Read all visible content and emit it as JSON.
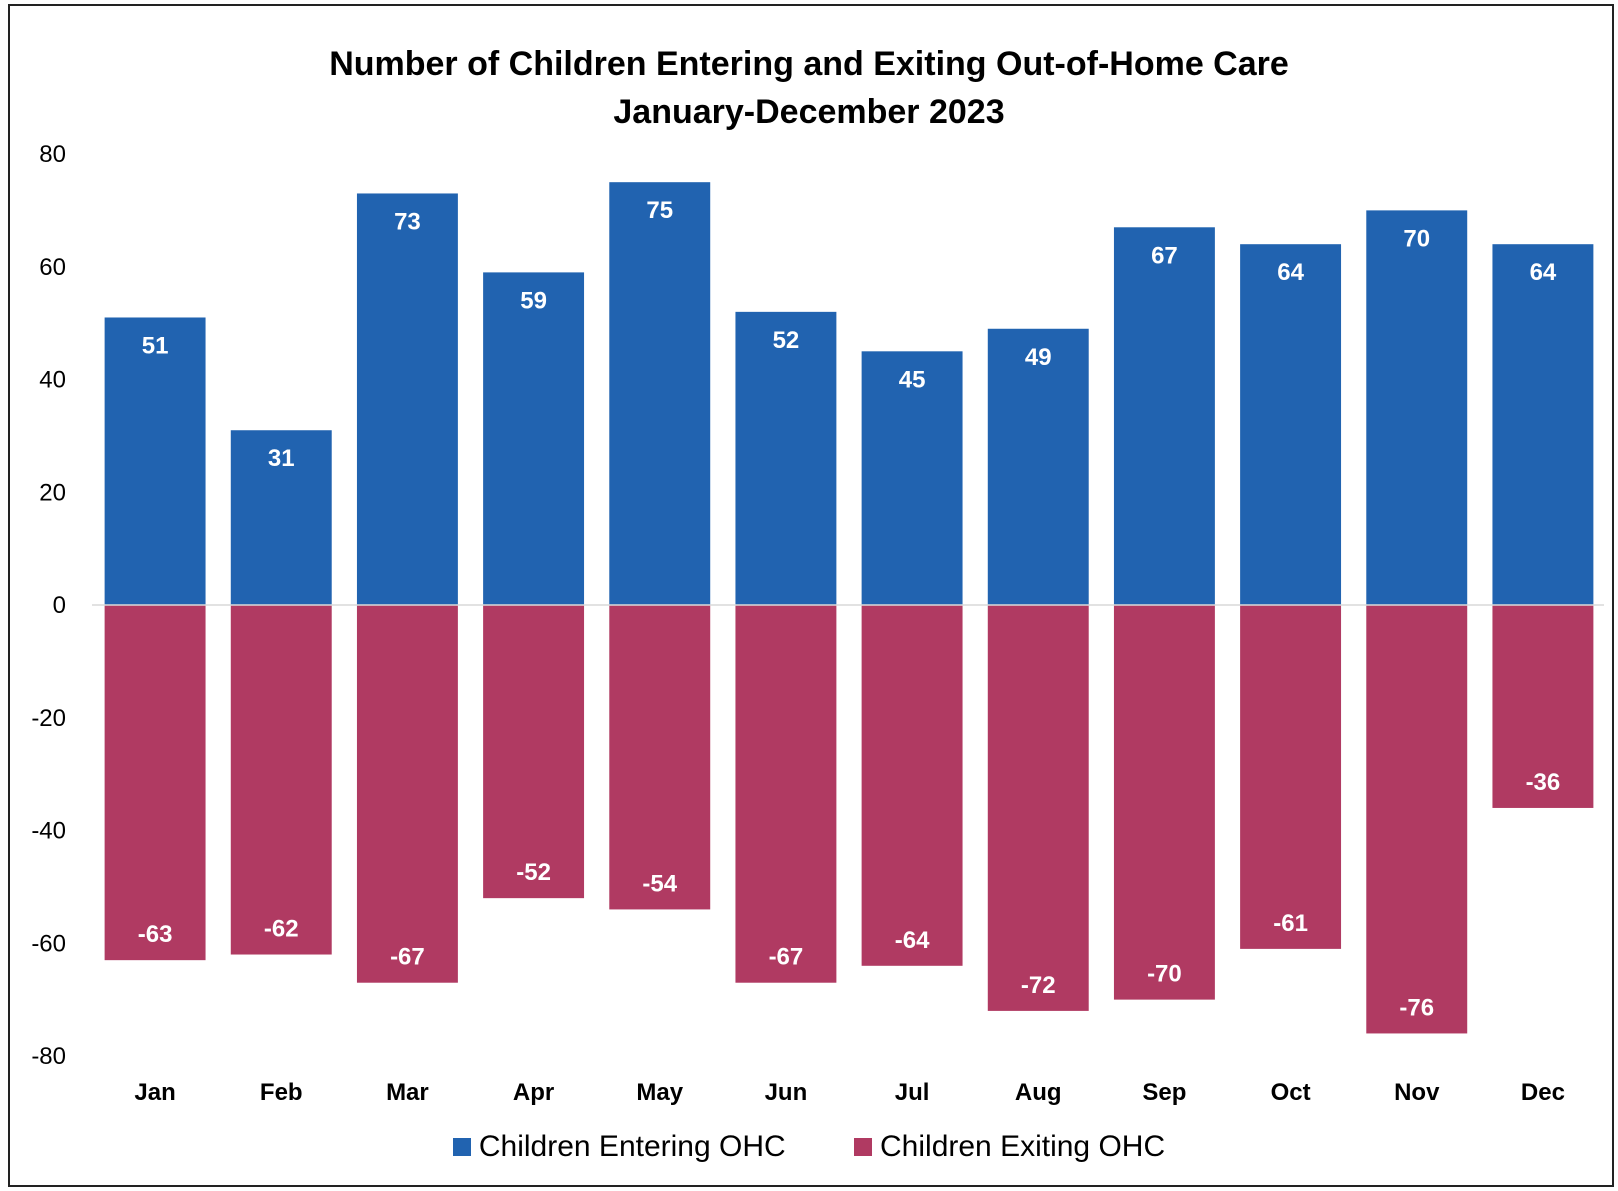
{
  "chart_data": {
    "type": "bar",
    "title": "Number of Children Entering and Exiting Out-of-Home Care",
    "subtitle": "January-December 2023",
    "categories": [
      "Jan",
      "Feb",
      "Mar",
      "Apr",
      "May",
      "Jun",
      "Jul",
      "Aug",
      "Sep",
      "Oct",
      "Nov",
      "Dec"
    ],
    "series": [
      {
        "name": "Children Entering OHC",
        "color": "#2163B0",
        "values": [
          51,
          31,
          73,
          59,
          75,
          52,
          45,
          49,
          67,
          64,
          70,
          64
        ]
      },
      {
        "name": "Children Exiting OHC",
        "color": "#B03A62",
        "values": [
          -63,
          -62,
          -67,
          -52,
          -54,
          -67,
          -64,
          -72,
          -70,
          -61,
          -76,
          -36
        ]
      }
    ],
    "yticks": [
      80,
      60,
      40,
      20,
      0,
      -20,
      -40,
      -60,
      -80
    ],
    "ylim": [
      -80,
      80
    ],
    "stacked": true,
    "grid": false,
    "data_labels": true,
    "legend_position": "bottom"
  }
}
